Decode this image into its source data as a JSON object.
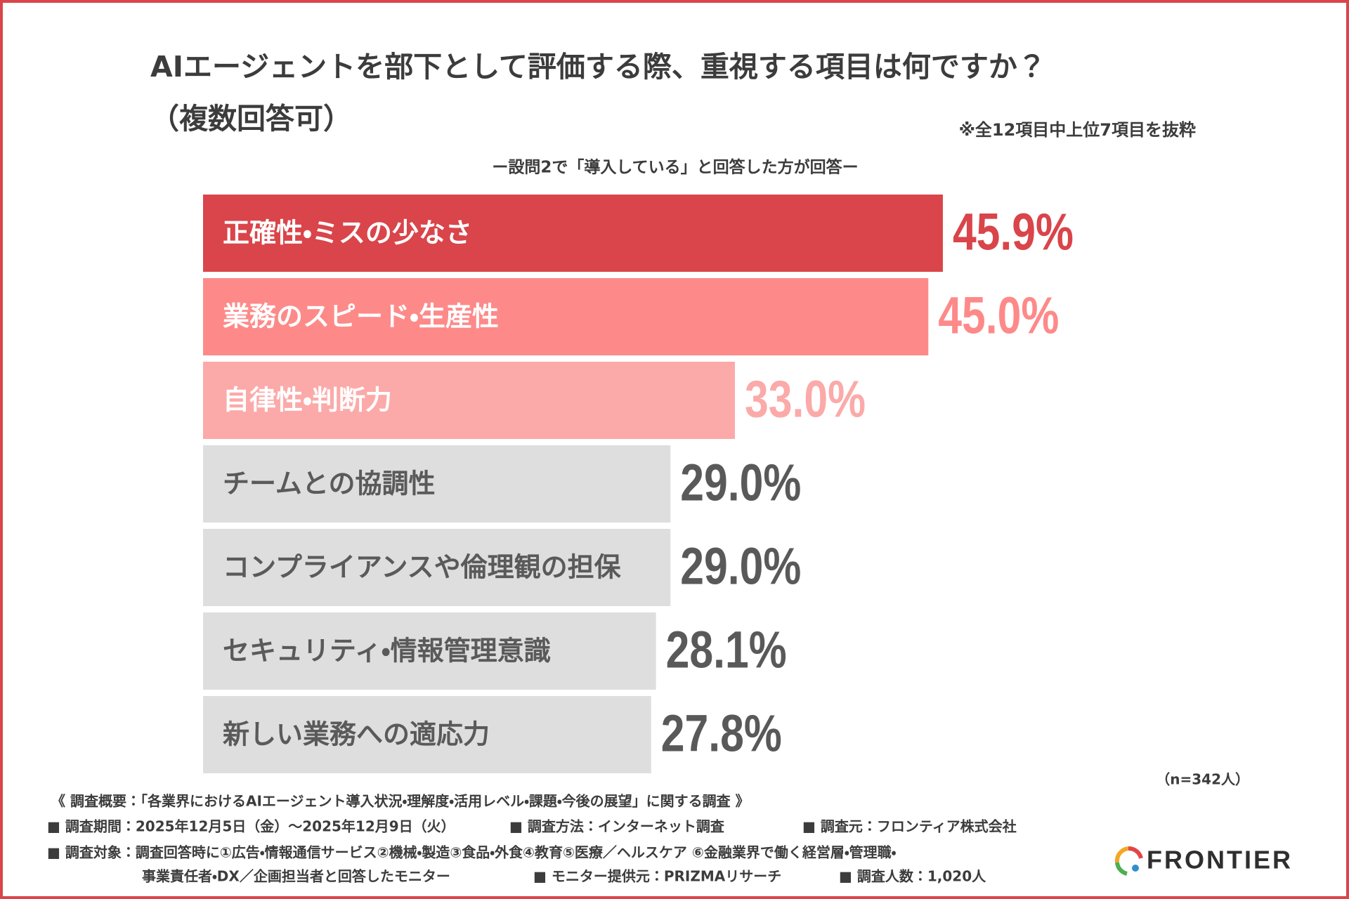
{
  "chart_data": {
    "type": "bar",
    "orientation": "horizontal",
    "title": "AIエージェントを部下として評価する際、重視する項目は何ですか？",
    "title_suffix": "（複数回答可）",
    "note": "※全12項目中上位7項目を抜粋",
    "subtitle": "ー設問2で「導入している」と回答した方が回答ー",
    "categories": [
      "正確性・ミスの少なさ",
      "業務のスピード・生産性",
      "自律性・判断力",
      "チームとの協調性",
      "コンプライアンスや倫理観の担保",
      "セキュリティ・情報管理意識",
      "新しい業務への適応力"
    ],
    "values": [
      45.9,
      45.0,
      33.0,
      29.0,
      29.0,
      28.1,
      27.8
    ],
    "value_labels": [
      "45.9%",
      "45.0%",
      "33.0%",
      "29.0%",
      "29.0%",
      "28.1%",
      "27.8%"
    ],
    "colors": [
      "#d9454a",
      "#fd8a89",
      "#fbaaa9",
      "#dedede",
      "#dedede",
      "#dedede",
      "#dedede"
    ],
    "text_colors": [
      "#ffffff",
      "#ffffff",
      "#ffffff",
      "#5a5a5a",
      "#5a5a5a",
      "#5a5a5a",
      "#5a5a5a"
    ],
    "value_label_colors": [
      "#d9454a",
      "#fd8a89",
      "#fbaaa9",
      "#595959",
      "#595959",
      "#595959",
      "#595959"
    ],
    "sample_size": "（n=342人）"
  },
  "footer": {
    "heading": "《 調査概要：「各業界におけるAIエージェント導入状況・理解度・活用レベル・課題・今後の展望」に関する調査 》",
    "items": [
      "■ 調査期間：2025年12月5日（金）～2025年12月9日（火）",
      "■ 調査方法：インターネット調査",
      "■ 調査元：フロンティア株式会社",
      "■ 調査対象：調査回答時に①広告・情報通信サービス②機械・製造③食品・外食④教育⑤医療／ヘルスケア ⑥金融業界で働く経営層・管理職・",
      "事業責任者・DX／企画担当者と回答したモニター",
      "■ モニター提供元：PRIZMAリサーチ",
      "■ 調査人数：1,020人"
    ]
  },
  "logo": "FRONTIER"
}
